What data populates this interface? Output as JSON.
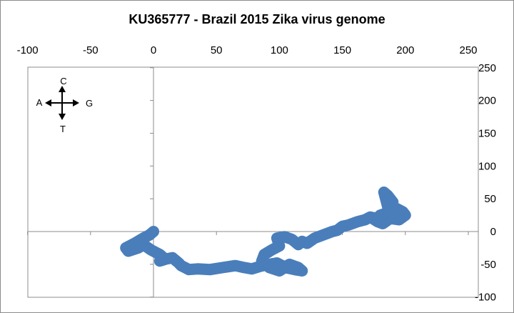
{
  "chart_data": {
    "type": "scatter",
    "title": "KU365777 -  Brazil 2015 Zika virus genome",
    "xlabel": "",
    "ylabel": "",
    "xlim": [
      -100,
      250
    ],
    "ylim": [
      -100,
      250
    ],
    "x_ticks": [
      -100,
      -50,
      0,
      50,
      100,
      150,
      200,
      250
    ],
    "y_ticks": [
      250,
      200,
      150,
      100,
      50,
      0,
      -50,
      -100
    ],
    "x_tick_labels": [
      "-100",
      "-50",
      "0",
      "50",
      "100",
      "150",
      "200",
      "250"
    ],
    "y_tick_labels": [
      "250",
      "200",
      "150",
      "100",
      "50",
      "0",
      "-50",
      "-100"
    ],
    "x_axis_position": "top",
    "y_axis_position": "right",
    "grid": false,
    "legend": "none",
    "series_color": "#4a7ebb",
    "compass": {
      "up": "C",
      "left": "A",
      "right": "G",
      "down": "T"
    },
    "series": [
      {
        "x": [
          0,
          -3,
          -8,
          -15,
          -22,
          -20,
          -12,
          -8,
          -2,
          5,
          8,
          5,
          10,
          15,
          20,
          22,
          25,
          28,
          35,
          45,
          55,
          65,
          72,
          78,
          85,
          92,
          98,
          105,
          112,
          118,
          115,
          108,
          100,
          92,
          86,
          88,
          94,
          100,
          98,
          104,
          110,
          115,
          118,
          122,
          128,
          135,
          142,
          146,
          150,
          155,
          162,
          168,
          172,
          178,
          180,
          185,
          188,
          190,
          186,
          183,
          186,
          193,
          198,
          200,
          195,
          188,
          182,
          178,
          174
        ],
        "y": [
          0,
          -5,
          -10,
          -18,
          -25,
          -30,
          -25,
          -20,
          -28,
          -35,
          -40,
          -45,
          -42,
          -40,
          -48,
          -52,
          -55,
          -58,
          -57,
          -58,
          -55,
          -52,
          -55,
          -57,
          -53,
          -50,
          -48,
          -55,
          -58,
          -60,
          -55,
          -50,
          -60,
          -55,
          -45,
          -35,
          -28,
          -22,
          -10,
          -8,
          -12,
          -20,
          -15,
          -18,
          -10,
          -5,
          0,
          2,
          8,
          10,
          15,
          18,
          22,
          20,
          25,
          28,
          35,
          45,
          55,
          60,
          38,
          35,
          30,
          25,
          18,
          20,
          12,
          15,
          20
        ]
      }
    ]
  }
}
